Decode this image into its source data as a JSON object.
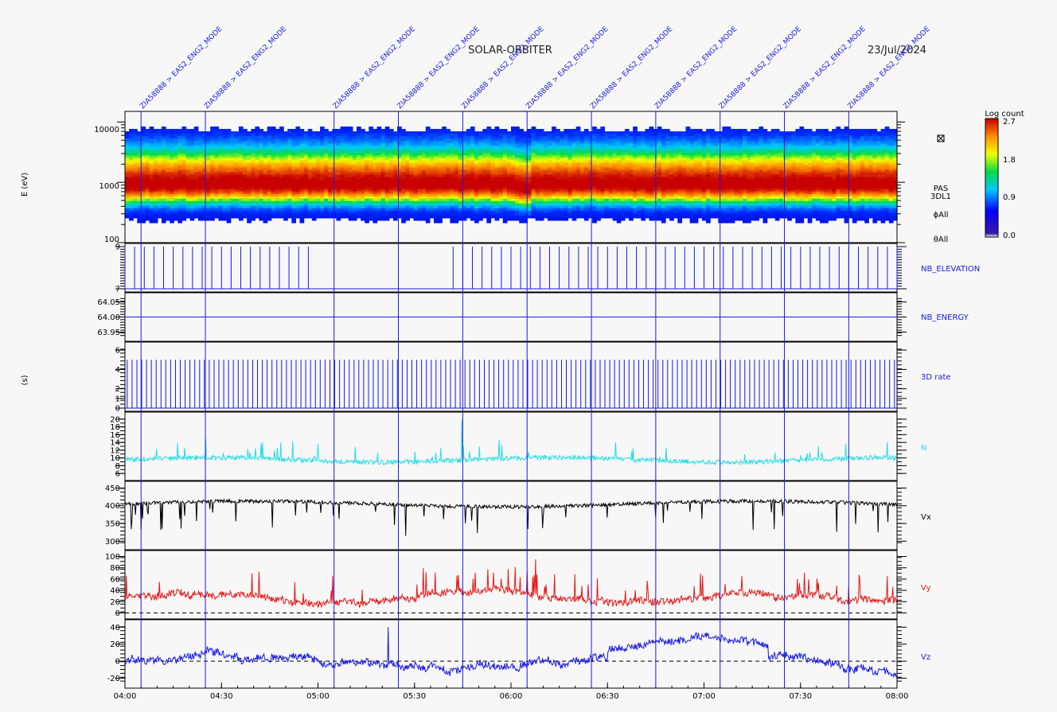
{
  "header": {
    "mission": "SOLAR-ORBITER",
    "date": "23/Jul/2024"
  },
  "time_axis": {
    "start": "04:00",
    "end": "08:00",
    "tick_labels": [
      "04:00",
      "04:30",
      "05:00",
      "05:30",
      "06:00",
      "06:30",
      "07:00",
      "07:30",
      "08:00"
    ]
  },
  "markers": {
    "label": "ZIA58888 > EAS2_ENG2_MODE",
    "times_min": [
      5,
      25,
      65,
      85,
      105,
      125,
      145,
      165,
      185,
      205,
      225
    ]
  },
  "side_labels": {
    "energy_ylabel": "E (eV)",
    "seconds_ylabel": "(s)",
    "pas_info": [
      "PAS",
      "3DL1",
      "ϕAll",
      "θAll"
    ],
    "box_icon": "close-box-icon"
  },
  "colorbar": {
    "title": "Log count",
    "ticks": [
      "2.7",
      "1.8",
      "0.9",
      "0.0"
    ]
  },
  "chart_data": [
    {
      "type": "heatmap",
      "name": "E",
      "ylabel": "E (eV)",
      "yscale": "log",
      "ylim": [
        100,
        15000
      ],
      "yticks": [
        "10000",
        "1000",
        "100"
      ],
      "peak_energy_eV": 900,
      "energy_band_eV": [
        200,
        9000
      ],
      "color_range": [
        0.0,
        2.7
      ]
    },
    {
      "type": "line",
      "name": "NB_ELEVATION",
      "color": "#1a1ae6",
      "yticks": [
        "9",
        "7"
      ],
      "ylim": [
        7,
        9
      ],
      "pattern": "spikes 7 to 9 every ~3 min; no spikes 04:58-05:40"
    },
    {
      "type": "line",
      "name": "NB_ENERGY",
      "color": "#1a1ae6",
      "yticks": [
        "64.05",
        "64.00",
        "63.95"
      ],
      "ylim": [
        63.93,
        64.07
      ],
      "value": 64.0
    },
    {
      "type": "line",
      "name": "3D rate",
      "color": "#1a1ae6",
      "yticks": [
        "6",
        "4",
        "2",
        "1",
        "0"
      ],
      "ylim": [
        0,
        6.5
      ],
      "pattern": "spikes 0 to 5 every ~1.5 min"
    },
    {
      "type": "line",
      "name": "N",
      "color": "#22dde6",
      "yticks": [
        "20",
        "18",
        "16",
        "14",
        "12",
        "10",
        "8",
        "6"
      ],
      "ylim": [
        5,
        21
      ],
      "baseline": 9.5,
      "max_spike": 20
    },
    {
      "type": "line",
      "name": "Vx",
      "color": "#000000",
      "yticks": [
        "450",
        "400",
        "350",
        "300"
      ],
      "ylim": [
        285,
        460
      ],
      "baseline": 405,
      "min_dip": 315
    },
    {
      "type": "line",
      "name": "Vy",
      "color": "#e61a1a",
      "yticks": [
        "100",
        "80",
        "60",
        "40",
        "20",
        "0"
      ],
      "ylim": [
        -5,
        105
      ],
      "baseline": 25,
      "max_spike": 95,
      "zero_dashed": true
    },
    {
      "type": "line",
      "name": "Vz",
      "color": "#1a1ae6",
      "yticks": [
        "40",
        "20",
        "0",
        "-20"
      ],
      "ylim": [
        -28,
        45
      ],
      "zero_dashed": true
    }
  ]
}
